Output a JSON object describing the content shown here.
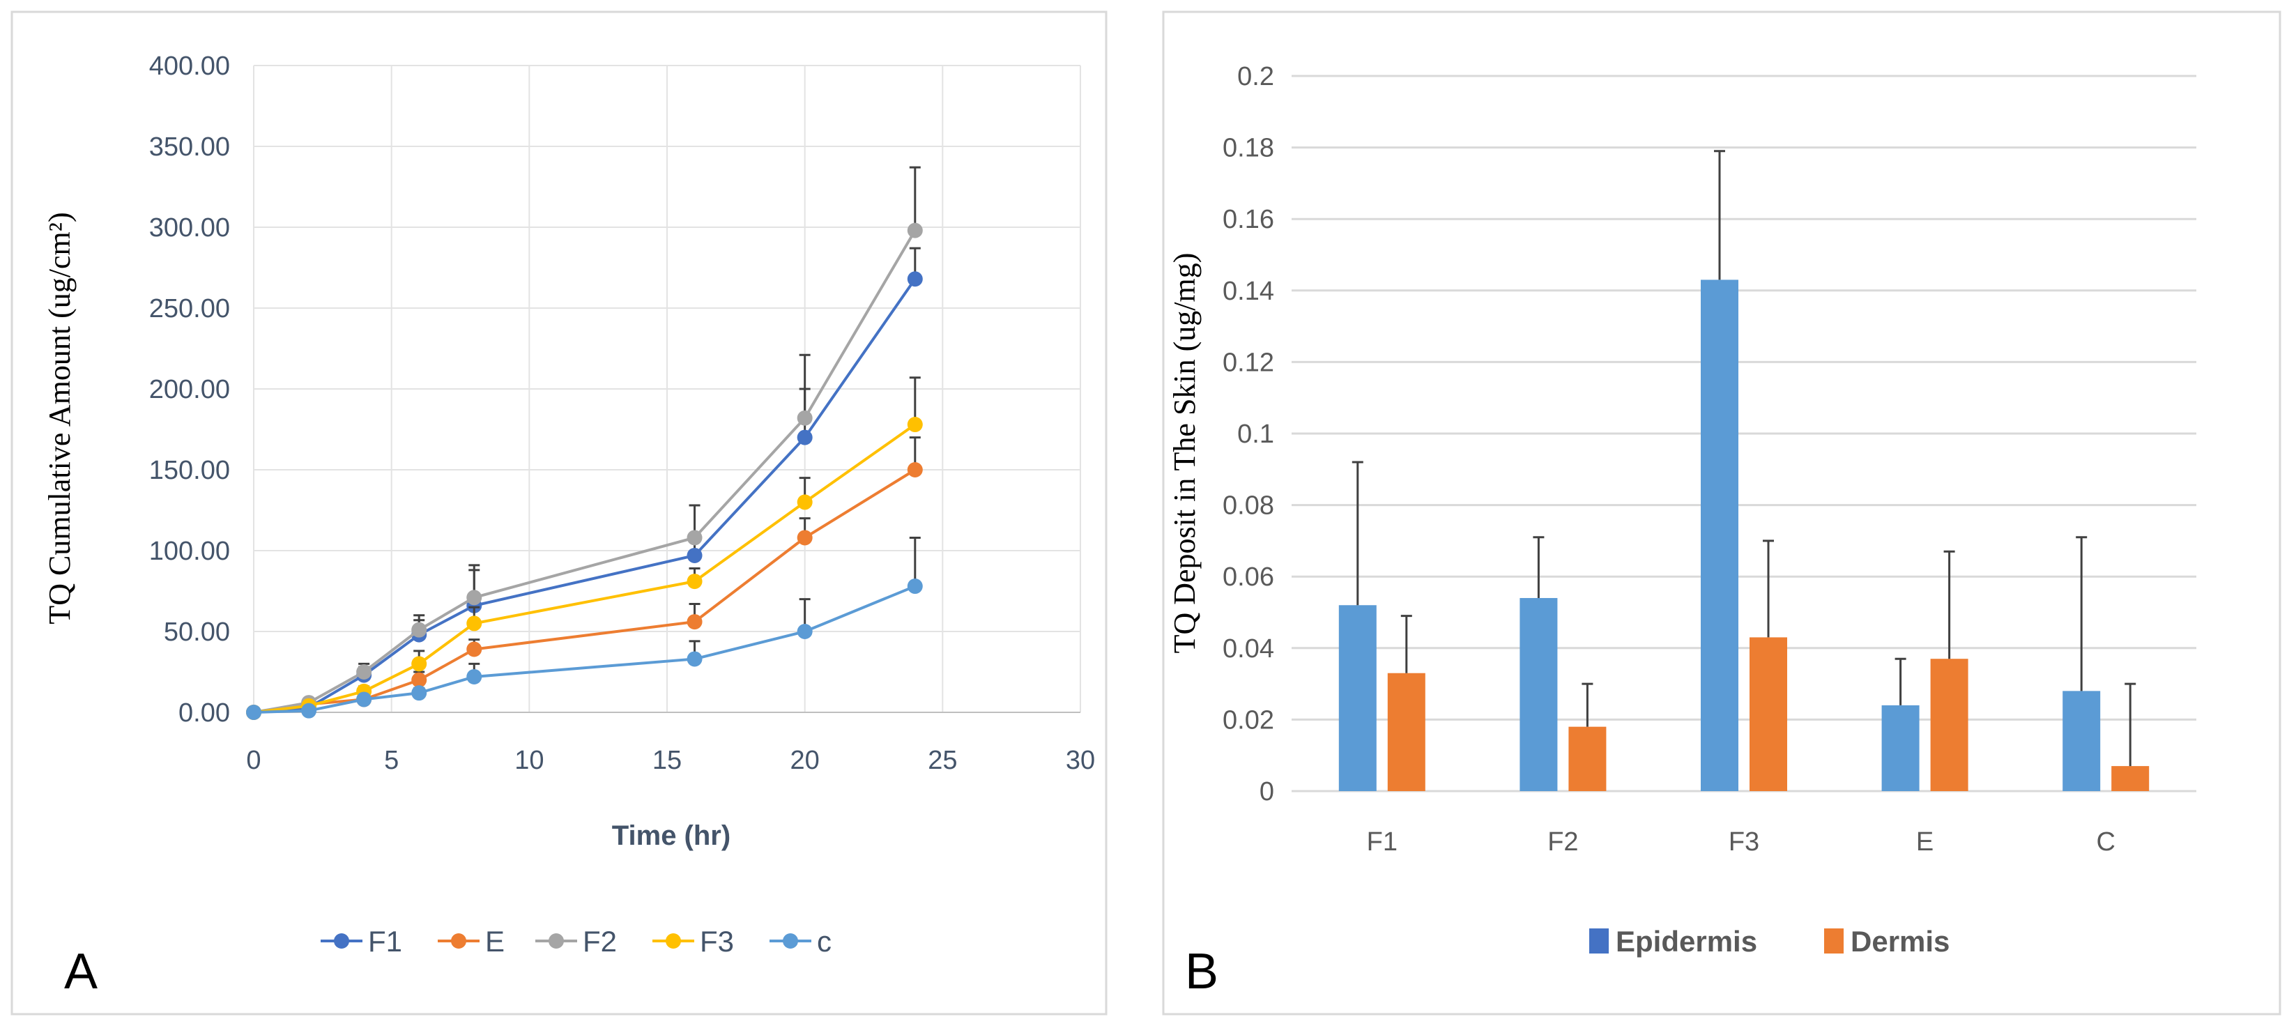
{
  "chart_data": [
    {
      "type": "line",
      "panel_label": "A",
      "xlabel": "Time (hr)",
      "ylabel": "TQ Cumulative Amount (ug/cm²)",
      "xlim": [
        0,
        30
      ],
      "ylim": [
        0,
        400
      ],
      "xticks": [
        "0",
        "5",
        "10",
        "15",
        "20",
        "25",
        "30"
      ],
      "yticks": [
        "0.00",
        "50.00",
        "100.00",
        "150.00",
        "200.00",
        "250.00",
        "300.00",
        "350.00",
        "400.00"
      ],
      "grid": true,
      "legend": "bottom",
      "x": [
        0,
        2,
        4,
        6,
        8,
        16,
        20,
        24
      ],
      "series": [
        {
          "name": "F1",
          "color": "#4472C4",
          "values": [
            0,
            3,
            23,
            48,
            66,
            97,
            170,
            268
          ],
          "errors": [
            0,
            2,
            5,
            9,
            22,
            12,
            30,
            19
          ]
        },
        {
          "name": "E",
          "color": "#ED7D31",
          "values": [
            0,
            5,
            8,
            20,
            39,
            56,
            108,
            150
          ],
          "errors": [
            0,
            1,
            2,
            5,
            6,
            11,
            12,
            20
          ]
        },
        {
          "name": "F2",
          "color": "#A5A5A5",
          "values": [
            0,
            6,
            25,
            51,
            71,
            108,
            182,
            298
          ],
          "errors": [
            0,
            2,
            5,
            9,
            20,
            20,
            39,
            39
          ]
        },
        {
          "name": "F3",
          "color": "#FFC000",
          "values": [
            0,
            4,
            13,
            30,
            55,
            81,
            130,
            178
          ],
          "errors": [
            0,
            1,
            3,
            8,
            10,
            8,
            15,
            29
          ]
        },
        {
          "name": "c",
          "color": "#5B9BD5",
          "values": [
            0,
            1,
            8,
            12,
            22,
            33,
            50,
            78
          ],
          "errors": [
            0,
            1,
            2,
            3,
            8,
            11,
            20,
            30
          ]
        }
      ]
    },
    {
      "type": "bar",
      "panel_label": "B",
      "xlabel": "",
      "ylabel": "TQ Deposit in The Skin (ug/mg)",
      "ylim": [
        0,
        0.2
      ],
      "yticks": [
        "0",
        "0.02",
        "0.04",
        "0.06",
        "0.08",
        "0.1",
        "0.12",
        "0.14",
        "0.16",
        "0.18",
        "0.2"
      ],
      "grid": true,
      "legend": "bottom",
      "categories": [
        "F1",
        "F2",
        "F3",
        "E",
        "C"
      ],
      "series": [
        {
          "name": "Epidermis",
          "color": "#5B9BD5",
          "legend_color": "#4472C4",
          "values": [
            0.052,
            0.054,
            0.143,
            0.024,
            0.028
          ],
          "errors": [
            0.04,
            0.017,
            0.036,
            0.013,
            0.043
          ]
        },
        {
          "name": "Dermis",
          "color": "#ED7D31",
          "legend_color": "#ED7D31",
          "values": [
            0.033,
            0.018,
            0.043,
            0.037,
            0.007
          ],
          "errors": [
            0.016,
            0.012,
            0.027,
            0.03,
            0.023
          ]
        }
      ]
    }
  ]
}
